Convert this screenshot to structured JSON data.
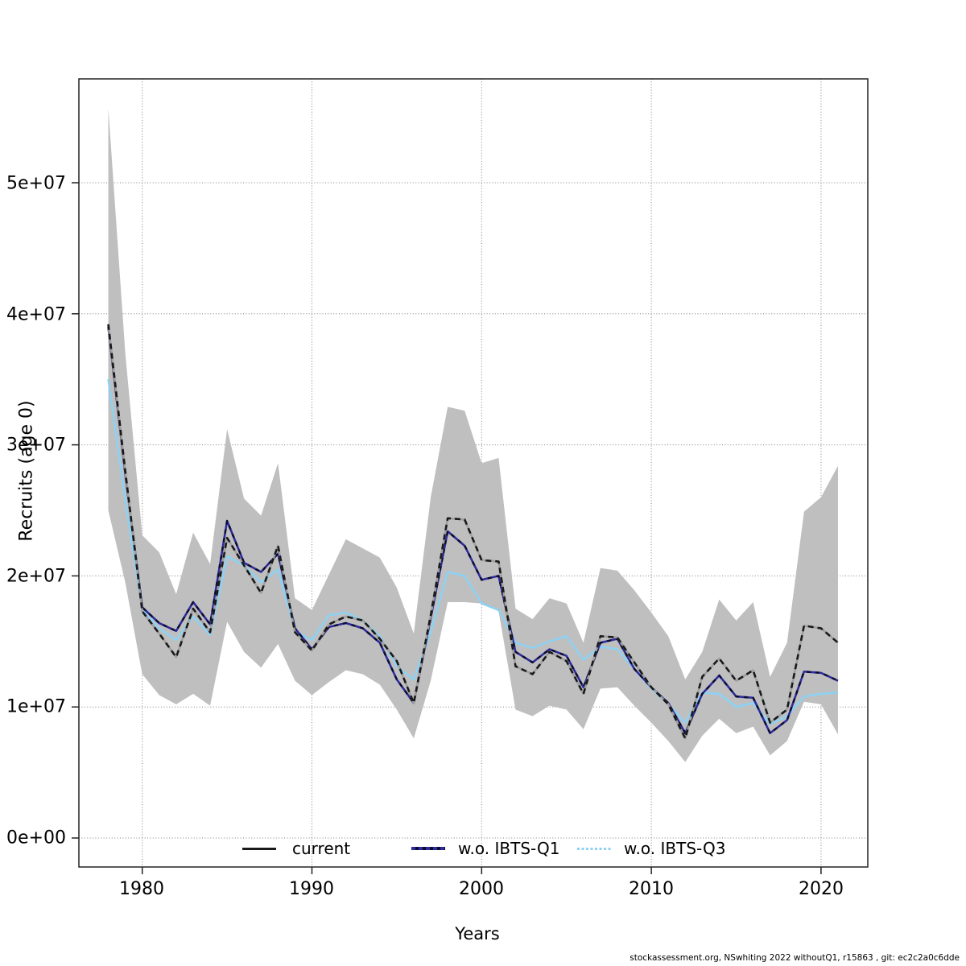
{
  "page": {
    "footer": "stockassessment.org, NSwhiting 2022 withoutQ1, r15863 , git: ec2c2a0c6dde"
  },
  "legend": {
    "items": [
      {
        "label": "current"
      },
      {
        "label": "w.o. IBTS-Q1"
      },
      {
        "label": "w.o. IBTS-Q3"
      }
    ]
  },
  "chart_data": {
    "type": "line",
    "title": "",
    "xlabel": "Years",
    "ylabel": "Recruits (age 0)",
    "grid": "dotted",
    "legend_position": "bottom-inside",
    "xlim": [
      1976.3,
      2022.8
    ],
    "ylim": [
      -2200000,
      57900000
    ],
    "x_ticks": [
      1980,
      1990,
      2000,
      2010,
      2020
    ],
    "x_tick_labels": [
      "1980",
      "1990",
      "2000",
      "2010",
      "2020"
    ],
    "y_ticks": [
      0,
      10000000,
      20000000,
      30000000,
      40000000,
      50000000
    ],
    "y_tick_labels": [
      "0e+00",
      "1e+07",
      "2e+07",
      "3e+07",
      "4e+07",
      "5e+07"
    ],
    "years": [
      1978,
      1979,
      1980,
      1981,
      1982,
      1983,
      1984,
      1985,
      1986,
      1987,
      1988,
      1989,
      1990,
      1991,
      1992,
      1993,
      1994,
      1995,
      1996,
      1997,
      1998,
      1999,
      2000,
      2001,
      2002,
      2003,
      2004,
      2005,
      2006,
      2007,
      2008,
      2009,
      2010,
      2011,
      2012,
      2013,
      2014,
      2015,
      2016,
      2017,
      2018,
      2019,
      2020,
      2021
    ],
    "series": [
      {
        "name": "current",
        "color": "#1a1a1a",
        "style": "black-dashed",
        "values": [
          39200000,
          28000000,
          17300000,
          15600000,
          13800000,
          17500000,
          15700000,
          22900000,
          20800000,
          18700000,
          22300000,
          15700000,
          14300000,
          16300000,
          16900000,
          16600000,
          15200000,
          13500000,
          10300000,
          17000000,
          24400000,
          24300000,
          21200000,
          21100000,
          13100000,
          12500000,
          14200000,
          13500000,
          11000000,
          15400000,
          15300000,
          13400000,
          11500000,
          10200000,
          7600000,
          12300000,
          13700000,
          12000000,
          12800000,
          8800000,
          9800000,
          16200000,
          16000000,
          14900000
        ]
      },
      {
        "name": "w.o. IBTS-Q1",
        "color": "#2e2b9c",
        "style": "navy-black-dash",
        "values": [
          39000000,
          27800000,
          17600000,
          16400000,
          15800000,
          18000000,
          16300000,
          24200000,
          21000000,
          20300000,
          21700000,
          16000000,
          14400000,
          16100000,
          16400000,
          16000000,
          14900000,
          12100000,
          10300000,
          16800000,
          23400000,
          22300000,
          19700000,
          20000000,
          14200000,
          13400000,
          14400000,
          13900000,
          11500000,
          14900000,
          15200000,
          12900000,
          11500000,
          10300000,
          8000000,
          11000000,
          12400000,
          10800000,
          10700000,
          8000000,
          9000000,
          12700000,
          12600000,
          12000000
        ]
      },
      {
        "name": "w.o. IBTS-Q3",
        "color": "#8ed1f2",
        "style": "lightblue-solid",
        "values": [
          35000000,
          25800000,
          17400000,
          16000000,
          15100000,
          16900000,
          15500000,
          21500000,
          20800000,
          19500000,
          20500000,
          15800000,
          15100000,
          17000000,
          17200000,
          16600000,
          15400000,
          13100000,
          12100000,
          15700000,
          20300000,
          20000000,
          17900000,
          17400000,
          14900000,
          14500000,
          15000000,
          15400000,
          13600000,
          14600000,
          14400000,
          12900000,
          11400000,
          10200000,
          8800000,
          11100000,
          11000000,
          10000000,
          10300000,
          8700000,
          9300000,
          10800000,
          11000000,
          11100000
        ]
      }
    ],
    "confidence_band": {
      "series": "current",
      "color": "#bfbfbf",
      "lower": [
        25000000,
        19500000,
        12500000,
        10900000,
        10200000,
        11000000,
        10100000,
        16500000,
        14200000,
        13000000,
        14800000,
        12000000,
        10900000,
        11900000,
        12800000,
        12500000,
        11700000,
        9800000,
        7600000,
        12000000,
        18000000,
        18000000,
        17900000,
        17300000,
        9800000,
        9300000,
        10100000,
        9800000,
        8300000,
        11400000,
        11500000,
        10100000,
        8800000,
        7400000,
        5800000,
        7800000,
        9100000,
        8000000,
        8500000,
        6300000,
        7400000,
        10400000,
        10200000,
        7900000
      ],
      "upper": [
        55700000,
        37000000,
        23100000,
        21800000,
        18600000,
        23300000,
        20900000,
        31200000,
        25900000,
        24600000,
        28600000,
        18300000,
        17400000,
        20100000,
        22800000,
        22100000,
        21400000,
        19100000,
        15600000,
        26000000,
        32900000,
        32600000,
        28600000,
        29000000,
        17500000,
        16700000,
        18300000,
        17900000,
        14900000,
        20600000,
        20400000,
        18900000,
        17200000,
        15400000,
        12100000,
        14200000,
        18200000,
        16600000,
        18000000,
        12300000,
        14900000,
        24900000,
        26000000,
        28400000
      ]
    }
  }
}
